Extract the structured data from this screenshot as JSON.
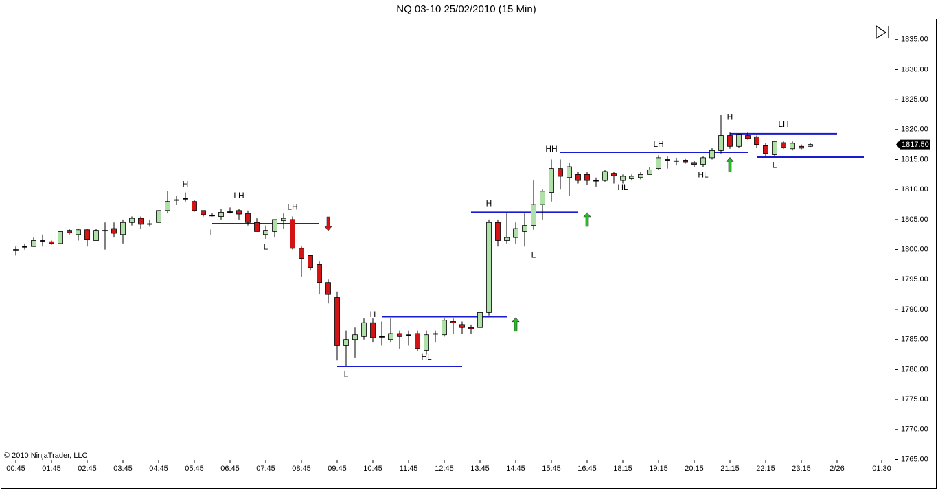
{
  "chart_data": {
    "type": "candlestick",
    "title": "NQ 03-10  25/02/2010 (15 Min)",
    "copyright": "© 2010 NinjaTrader, LLC",
    "categories": [
      "00:45",
      null,
      null,
      null,
      "01:45",
      null,
      null,
      null,
      "02:45",
      null,
      null,
      null,
      "03:45",
      null,
      null,
      null,
      "04:45",
      null,
      null,
      null,
      "05:45",
      null,
      null,
      null,
      "06:45",
      null,
      null,
      null,
      "07:45",
      null,
      null,
      null,
      "08:45",
      null,
      null,
      null,
      "09:45",
      null,
      null,
      null,
      "10:45",
      null,
      null,
      null,
      "11:45",
      null,
      null,
      null,
      "12:45",
      null,
      null,
      null,
      "13:45",
      null,
      null,
      null,
      "14:45",
      null,
      null,
      null,
      "15:45",
      null,
      null,
      null,
      "16:45",
      null,
      null,
      null,
      "18:15",
      null,
      null,
      null,
      "19:15",
      null,
      null,
      null,
      "20:15",
      null,
      null,
      null,
      "21:15",
      null,
      null,
      null,
      "22:15",
      null,
      null,
      null,
      "23:15",
      null,
      null,
      null,
      "2/26",
      null,
      null,
      null,
      null,
      "01:30"
    ],
    "open": [
      1799.8,
      1800.5,
      1800.5,
      1801.5,
      1801.3,
      1801,
      1803.2,
      1802.5,
      1803.3,
      1801.5,
      1803.2,
      1803.5,
      1802.5,
      1804.5,
      1805.2,
      1804.3,
      1804.5,
      1806.5,
      1808.3,
      1808.5,
      1808,
      1806.5,
      1805.7,
      1805.5,
      1806.3,
      1806.5,
      1806,
      1804.5,
      1802.5,
      1803,
      1804.8,
      1805,
      1800.2,
      1799,
      1797.5,
      1794.5,
      1792,
      1784,
      1785,
      1785.5,
      1787.8,
      1785.5,
      1785,
      1786,
      1785.8,
      1786,
      1783.2,
      1786,
      1785.8,
      1788,
      1787.5,
      1787,
      1787,
      1789.5,
      1804.5,
      1801.5,
      1802,
      1803,
      1804,
      1807.5,
      1809.5,
      1813.5,
      1812,
      1812.5,
      1812.5,
      1811.5,
      1811.5,
      1812.7,
      1811.5,
      1811.8,
      1812,
      1812.5,
      1813.5,
      1815,
      1814.8,
      1814.9,
      1814.5,
      1814.2,
      1815.3,
      1816.5,
      1819,
      1817.2,
      1819,
      1818.8,
      1817.3,
      1815.8,
      1817.8,
      1816.8,
      1817.2,
      1817.2,
      null,
      null,
      null,
      null,
      null,
      null,
      null,
      null
    ],
    "high": [
      1800.5,
      1801,
      1802,
      1802.5,
      1801.5,
      1803,
      1803.5,
      1803.5,
      1803.5,
      1803.5,
      1804.5,
      1804.5,
      1805,
      1805.5,
      1805.5,
      1805,
      1806.5,
      1809.8,
      1809,
      1809.5,
      1808.3,
      1806.5,
      1806,
      1806.7,
      1807,
      1806.7,
      1806.5,
      1805.2,
      1804,
      1805,
      1806,
      1805.5,
      1800.5,
      1799,
      1798,
      1795,
      1793,
      1786.5,
      1787,
      1788.5,
      1788.5,
      1788,
      1788.5,
      1786.5,
      1786.5,
      1786.5,
      1786.5,
      1786.5,
      1788.5,
      1788.5,
      1788,
      1787.5,
      1789.5,
      1805,
      1805,
      1806,
      1804.5,
      1806,
      1811.5,
      1810,
      1815,
      1815,
      1814.5,
      1813,
      1813,
      1812,
      1813.3,
      1813,
      1812.5,
      1812.5,
      1813,
      1813.7,
      1815.7,
      1815.5,
      1815.3,
      1815.2,
      1814.8,
      1815.5,
      1817,
      1822.5,
      1819.5,
      1819.3,
      1819.5,
      1819,
      1817.7,
      1818,
      1818,
      1818,
      1817.5,
      1817.7,
      null,
      null,
      null,
      null,
      null,
      null,
      null,
      null
    ],
    "low": [
      1799,
      1800,
      1800.5,
      1800.5,
      1800.8,
      1801,
      1802.5,
      1801.5,
      1800.5,
      1801.5,
      1800,
      1802,
      1801,
      1804,
      1803.5,
      1803.8,
      1804.5,
      1806,
      1807.5,
      1808,
      1806.3,
      1805.5,
      1805.5,
      1805,
      1806,
      1805,
      1804,
      1803,
      1801.8,
      1802,
      1803.5,
      1800,
      1795.5,
      1796.5,
      1792.5,
      1791,
      1781.5,
      1780.5,
      1782,
      1785,
      1784.5,
      1784,
      1784.5,
      1783.5,
      1784,
      1783,
      1782.5,
      1784.5,
      1785.5,
      1786,
      1786,
      1786,
      1787,
      1789,
      1800.5,
      1801,
      1801,
      1800.5,
      1803.3,
      1805,
      1808,
      1810,
      1809,
      1811,
      1810.8,
      1810.5,
      1811.3,
      1811,
      1811,
      1811.5,
      1811.7,
      1812.5,
      1813.3,
      1813.5,
      1814,
      1814.3,
      1813.8,
      1813.8,
      1815,
      1816,
      1816.8,
      1817,
      1818.3,
      1817,
      1815.5,
      1815.5,
      1816.8,
      1816.5,
      1816.7,
      1817.1,
      null,
      null,
      null,
      null,
      null,
      null,
      null,
      null
    ],
    "close": [
      1800,
      1800.5,
      1801.5,
      1801.5,
      1801,
      1803,
      1802.8,
      1803.3,
      1801.7,
      1803.2,
      1803.2,
      1802.7,
      1804.5,
      1805.2,
      1804.2,
      1804.3,
      1806.5,
      1808,
      1808.3,
      1808.5,
      1806.5,
      1805.8,
      1805.7,
      1806.2,
      1806.3,
      1805.9,
      1804.5,
      1803,
      1803.2,
      1805,
      1805.2,
      1800.2,
      1798.5,
      1797,
      1794.5,
      1792.5,
      1784,
      1785,
      1785.8,
      1787.8,
      1785.3,
      1785.5,
      1786,
      1785.5,
      1785.8,
      1783.5,
      1785.8,
      1786,
      1788.2,
      1787.8,
      1787,
      1786.8,
      1789.5,
      1804.5,
      1801.5,
      1802,
      1803.5,
      1804,
      1807.5,
      1809.7,
      1813.5,
      1812.2,
      1813.8,
      1811.5,
      1811.5,
      1811.5,
      1813,
      1812.3,
      1812.2,
      1812.2,
      1812.5,
      1813.3,
      1815.3,
      1815,
      1814.8,
      1814.6,
      1814.2,
      1815.3,
      1816.5,
      1819,
      1817.2,
      1819.2,
      1818.5,
      1817.5,
      1816,
      1818,
      1817,
      1817.7,
      1816.9,
      1817.5,
      null,
      null,
      null,
      null,
      null,
      null,
      null,
      null
    ],
    "up_color": "#aee0a8",
    "down_color": "#d41414",
    "wick_color": "#000000",
    "ylim": [
      1765,
      1838.4
    ],
    "yticks": [
      {
        "value": 1765,
        "label": "1765.00"
      },
      {
        "value": 1770,
        "label": "1770.00"
      },
      {
        "value": 1775,
        "label": "1775.00"
      },
      {
        "value": 1780,
        "label": "1780.00"
      },
      {
        "value": 1785,
        "label": "1785.00"
      },
      {
        "value": 1790,
        "label": "1790.00"
      },
      {
        "value": 1795,
        "label": "1795.00"
      },
      {
        "value": 1800,
        "label": "1800.00"
      },
      {
        "value": 1805,
        "label": "1805.00"
      },
      {
        "value": 1810,
        "label": "1810.00"
      },
      {
        "value": 1815,
        "label": "1815.00"
      },
      {
        "value": 1820,
        "label": "1820.00"
      },
      {
        "value": 1825,
        "label": "1825.00"
      },
      {
        "value": 1830,
        "label": "1830.00"
      },
      {
        "value": 1835,
        "label": "1835.00"
      }
    ],
    "last_price": {
      "value": 1817.5,
      "label": "1817.50"
    },
    "levels_color": "#1a1ad0",
    "levels": [
      {
        "price": 1804.3,
        "start": 22,
        "end": 34
      },
      {
        "price": 1780.5,
        "start": 36,
        "end": 50
      },
      {
        "price": 1788.8,
        "start": 41,
        "end": 55
      },
      {
        "price": 1806.2,
        "start": 51,
        "end": 63
      },
      {
        "price": 1816.2,
        "start": 61,
        "end": 82
      },
      {
        "price": 1819.3,
        "start": 80,
        "end": 92
      },
      {
        "price": 1815.4,
        "start": 83,
        "end": 95
      }
    ],
    "annotations": [
      {
        "text": "H",
        "x": 19,
        "y": 1810.8
      },
      {
        "text": "L",
        "x": 22,
        "y": 1802.7
      },
      {
        "text": "LH",
        "x": 25,
        "y": 1808.9
      },
      {
        "text": "L",
        "x": 28,
        "y": 1800.4
      },
      {
        "text": "LH",
        "x": 31,
        "y": 1807
      },
      {
        "text": "L",
        "x": 37,
        "y": 1779.1
      },
      {
        "text": "H",
        "x": 40,
        "y": 1789.1
      },
      {
        "text": "HL",
        "x": 46,
        "y": 1782
      },
      {
        "text": "H",
        "x": 53,
        "y": 1807.6
      },
      {
        "text": "L",
        "x": 58,
        "y": 1799
      },
      {
        "text": "HH",
        "x": 60,
        "y": 1816.7
      },
      {
        "text": "HL",
        "x": 68,
        "y": 1810.3
      },
      {
        "text": "LH",
        "x": 72,
        "y": 1817.5
      },
      {
        "text": "HL",
        "x": 77,
        "y": 1812.4
      },
      {
        "text": "H",
        "x": 80,
        "y": 1822
      },
      {
        "text": "L",
        "x": 85,
        "y": 1814
      },
      {
        "text": "LH",
        "x": 86,
        "y": 1820.8
      }
    ],
    "arrows": [
      {
        "direction": "down",
        "x": 35,
        "y": 1804.3,
        "color": "#d41414"
      },
      {
        "direction": "up",
        "x": 56,
        "y": 1787.5,
        "color": "#20c020"
      },
      {
        "direction": "up",
        "x": 64,
        "y": 1805,
        "color": "#20c020"
      },
      {
        "direction": "up",
        "x": 80,
        "y": 1814.2,
        "color": "#20c020"
      }
    ]
  }
}
